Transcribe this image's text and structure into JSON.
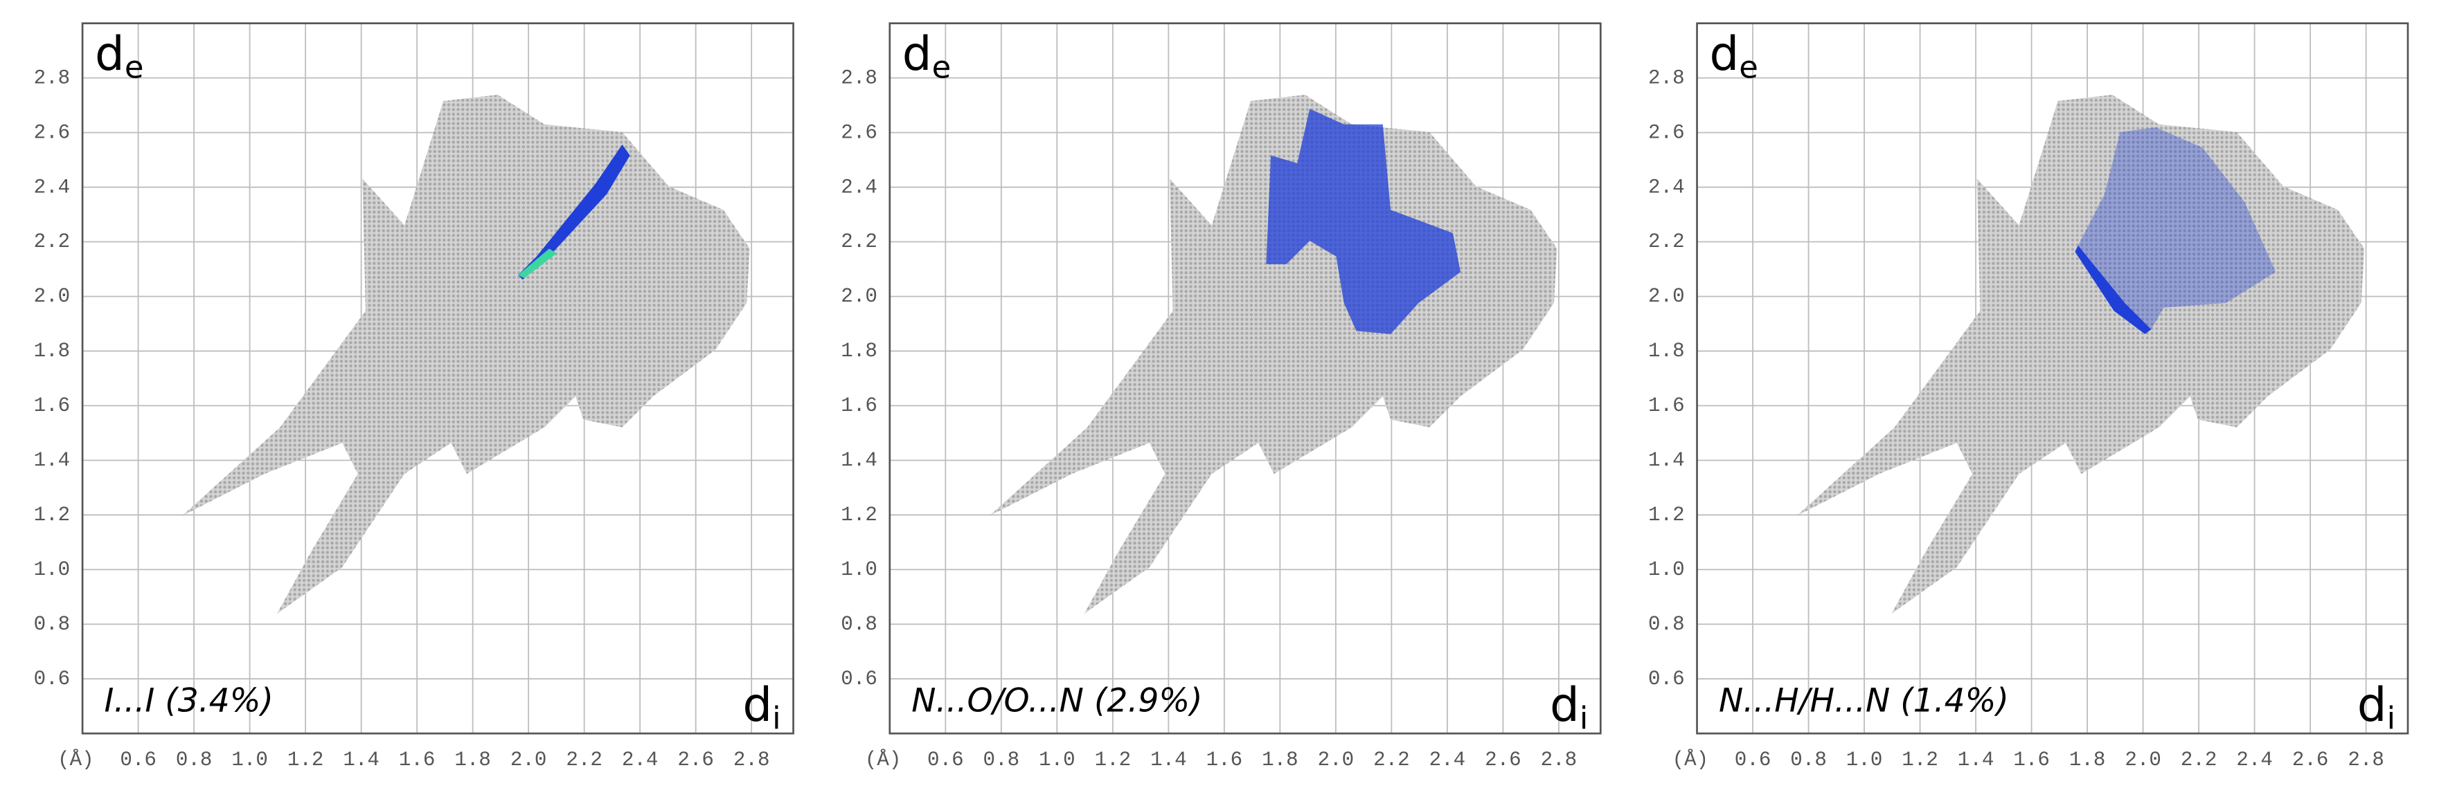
{
  "chart_data": [
    {
      "type": "fingerprint",
      "annotation": "I...I (3.4%)",
      "xlabel": "d",
      "xlabel_sub": "i",
      "ylabel": "d",
      "ylabel_sub": "e",
      "x_unit": "(Å)",
      "xlim": [
        0.4,
        2.95
      ],
      "ylim": [
        0.4,
        3.0
      ],
      "xticks": [
        0.6,
        0.8,
        {
          "value": 1,
          "label": "1.0"
        },
        1.2,
        1.4,
        1.6,
        1.8,
        {
          "value": 2,
          "label": "2.0"
        },
        2.2,
        2.4,
        2.6,
        2.8
      ],
      "yticks": [
        0.6,
        0.8,
        {
          "value": 1,
          "label": "1.0"
        },
        1.2,
        1.4,
        1.6,
        1.8,
        {
          "value": 2,
          "label": "2.0"
        },
        2.2,
        2.4,
        2.6,
        2.8
      ],
      "grid": true
    },
    {
      "type": "fingerprint",
      "annotation": "N...O/O...N (2.9%)",
      "xlabel": "d",
      "xlabel_sub": "i",
      "ylabel": "d",
      "ylabel_sub": "e",
      "x_unit": "(Å)",
      "xlim": [
        0.4,
        2.95
      ],
      "ylim": [
        0.4,
        3.0
      ],
      "xticks": [
        0.6,
        0.8,
        {
          "value": 1,
          "label": "1.0"
        },
        1.2,
        1.4,
        1.6,
        1.8,
        {
          "value": 2,
          "label": "2.0"
        },
        2.2,
        2.4,
        2.6,
        2.8
      ],
      "yticks": [
        0.6,
        0.8,
        {
          "value": 1,
          "label": "1.0"
        },
        1.2,
        1.4,
        1.6,
        1.8,
        {
          "value": 2,
          "label": "2.0"
        },
        2.2,
        2.4,
        2.6,
        2.8
      ],
      "grid": true
    },
    {
      "type": "fingerprint",
      "annotation": "N...H/H...N (1.4%)",
      "xlabel": "d",
      "xlabel_sub": "i",
      "ylabel": "d",
      "ylabel_sub": "e",
      "x_unit": "(Å)",
      "xlim": [
        0.4,
        2.95
      ],
      "ylim": [
        0.4,
        3.0
      ],
      "xticks": [
        0.6,
        0.8,
        {
          "value": 1,
          "label": "1.0"
        },
        1.2,
        1.4,
        1.6,
        1.8,
        {
          "value": 2,
          "label": "2.0"
        },
        2.2,
        2.4,
        2.6,
        2.8
      ],
      "yticks": [
        0.6,
        0.8,
        {
          "value": 1,
          "label": "1.0"
        },
        1.2,
        1.4,
        1.6,
        1.8,
        {
          "value": 2,
          "label": "2.0"
        },
        2.2,
        2.4,
        2.6,
        2.8
      ],
      "grid": true
    }
  ]
}
